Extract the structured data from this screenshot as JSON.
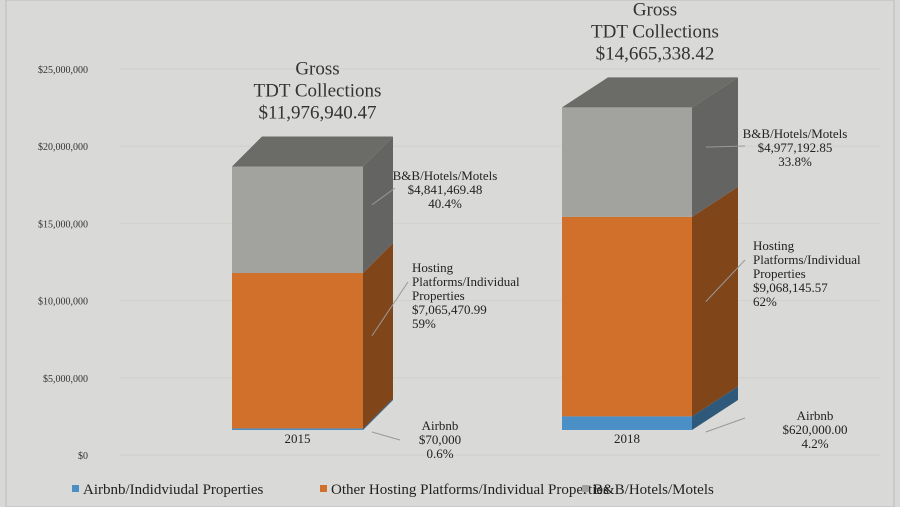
{
  "chart_data": {
    "type": "bar",
    "stacked": true,
    "style": "3d-column",
    "categories": [
      "2015",
      "2018"
    ],
    "series": [
      {
        "name": "Airbnb/Indidviudal Properties",
        "color": "#4a8fc6",
        "values": [
          70000,
          620000
        ]
      },
      {
        "name": "Other Hosting Platforms/Individual Properties",
        "color": "#d0702a",
        "values": [
          7065470.99,
          9068145.57
        ]
      },
      {
        "name": "B&B/Hotels/Motels",
        "color": "#a2a29e",
        "values": [
          4841469.48,
          4977192.85
        ]
      }
    ],
    "ylim": [
      0,
      25000000
    ],
    "yticks": [
      "$0",
      "$5,000,000",
      "$10,000,000",
      "$15,000,000",
      "$20,000,000",
      "$25,000,000"
    ],
    "grid": true,
    "legend": "bottom",
    "totals": [
      {
        "line1": "Gross",
        "line2": "TDT Collections",
        "line3": "$11,976,940.47"
      },
      {
        "line1": "Gross",
        "line2": "TDT Collections",
        "line3": "$14,665,338.42"
      }
    ],
    "annotations": [
      [
        {
          "lines": [
            "Airbnb",
            "$70,000",
            "0.6%"
          ]
        },
        {
          "lines": [
            "Hosting",
            "Platforms/Individual",
            "Properties",
            "$7,065,470.99",
            " 59%"
          ]
        },
        {
          "lines": [
            "B&B/Hotels/Motels",
            "$4,841,469.48",
            "40.4%"
          ]
        }
      ],
      [
        {
          "lines": [
            "Airbnb",
            "$620,000.00",
            "4.2%"
          ]
        },
        {
          "lines": [
            "Hosting",
            "Platforms/Individual",
            "Properties",
            "$9,068,145.57",
            " 62%"
          ]
        },
        {
          "lines": [
            "B&B/Hotels/Motels",
            "$4,977,192.85",
            "33.8%"
          ]
        }
      ]
    ]
  }
}
